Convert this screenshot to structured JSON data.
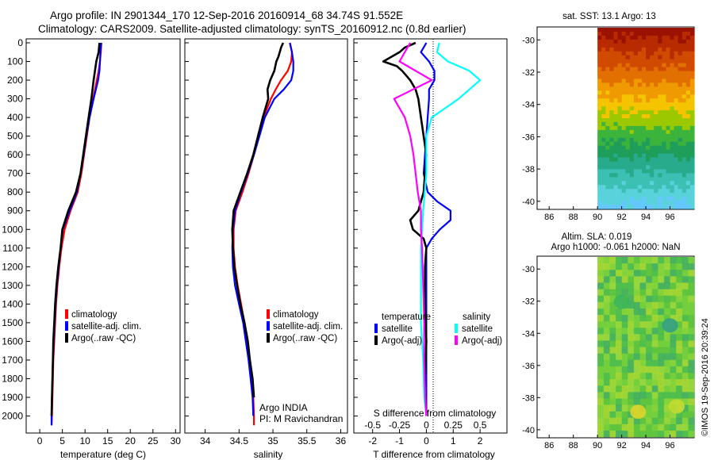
{
  "header": {
    "title_line1": "Argo profile: IN 2901344_170 12-Sep-2016 20160914_68 34.74S 91.552E",
    "title_line2": "Climatology: CARS2009. Satellite-adjusted climatology: synTS_20160912.nc (0.8d earlier)"
  },
  "colors": {
    "climatology": "#ff0000",
    "satellite": "#0000ff",
    "argo": "#000000",
    "sat_salinity": "#00ffff",
    "argo_salinity": "#ff00ff"
  },
  "chart_data": [
    {
      "type": "line",
      "title": "",
      "xlabel": "temperature (deg C)",
      "ylabel": "",
      "xlim": [
        -3,
        31
      ],
      "ylim": [
        2070,
        0
      ],
      "xticks": [
        "0",
        "5",
        "10",
        "15",
        "20",
        "25",
        "30"
      ],
      "yticks": [
        "0",
        "100",
        "200",
        "300",
        "400",
        "500",
        "600",
        "700",
        "800",
        "900",
        "1000",
        "1100",
        "1200",
        "1300",
        "1400",
        "1500",
        "1600",
        "1700",
        "1800",
        "1900",
        "2000"
      ],
      "legend": [
        "climatology",
        "satellite-adj. clim.",
        "Argo(..raw -QC)"
      ],
      "legend_position": "lower-center",
      "series": [
        {
          "name": "climatology",
          "color": "#ff0000",
          "depth": [
            0,
            50,
            100,
            150,
            200,
            300,
            400,
            500,
            600,
            700,
            800,
            900,
            1000,
            1100,
            1200,
            1300,
            1400,
            1500,
            1600,
            1700,
            1800,
            1900,
            2000,
            2050
          ],
          "values": [
            13.6,
            13.5,
            13.3,
            13.0,
            12.6,
            11.8,
            11.0,
            10.4,
            9.8,
            9.2,
            8.4,
            6.8,
            5.5,
            4.8,
            4.3,
            3.9,
            3.6,
            3.4,
            3.2,
            3.0,
            2.9,
            2.8,
            2.7,
            2.6
          ]
        },
        {
          "name": "satellite-adj. clim.",
          "color": "#0000ff",
          "depth": [
            0,
            50,
            100,
            150,
            200,
            300,
            400,
            500,
            600,
            700,
            800,
            900,
            1000,
            1100,
            1200,
            1300,
            1400,
            1500,
            1600,
            1700,
            1800,
            1900,
            2000,
            2050
          ],
          "values": [
            13.6,
            13.4,
            13.3,
            13.2,
            12.9,
            11.9,
            11.0,
            10.3,
            9.7,
            9.0,
            8.2,
            6.6,
            5.1,
            4.6,
            4.2,
            3.8,
            3.5,
            3.3,
            3.1,
            2.9,
            2.8,
            2.7,
            2.6,
            2.6
          ]
        },
        {
          "name": "Argo(..raw -QC)",
          "color": "#000000",
          "depth": [
            0,
            50,
            100,
            150,
            200,
            300,
            400,
            500,
            600,
            700,
            800,
            900,
            1000,
            1100,
            1200,
            1300,
            1400,
            1500,
            1600,
            1700,
            1800,
            1900,
            2000
          ],
          "values": [
            13.2,
            13.0,
            12.5,
            12.2,
            11.9,
            11.4,
            10.8,
            10.2,
            9.6,
            9.0,
            8.0,
            6.3,
            5.0,
            4.6,
            4.1,
            3.7,
            3.4,
            3.2,
            3.0,
            2.9,
            2.8,
            2.7,
            2.6
          ]
        }
      ]
    },
    {
      "type": "line",
      "title": "",
      "xlabel": "salinity",
      "ylabel": "",
      "xlim": [
        33.7,
        36.1
      ],
      "ylim": [
        2070,
        0
      ],
      "xticks": [
        "34",
        "34.5",
        "35",
        "35.5",
        "36"
      ],
      "legend": [
        "climatology",
        "satellite-adj. clim.",
        "Argo(..raw -QC)"
      ],
      "legend_position": "lower-right",
      "annotation_line1": "Argo INDIA",
      "annotation_line2": "PI: M Ravichandran",
      "series": [
        {
          "name": "climatology",
          "color": "#ff0000",
          "depth": [
            0,
            50,
            100,
            150,
            200,
            250,
            300,
            400,
            500,
            600,
            700,
            800,
            900,
            1000,
            1100,
            1200,
            1300,
            1400,
            1500,
            1600,
            1700,
            1800,
            1900,
            2000,
            2050
          ],
          "values": [
            35.25,
            35.28,
            35.27,
            35.22,
            35.12,
            35.04,
            34.97,
            34.86,
            34.79,
            34.72,
            34.64,
            34.55,
            34.45,
            34.42,
            34.42,
            34.44,
            34.48,
            34.53,
            34.58,
            34.62,
            34.65,
            34.68,
            34.71,
            34.72,
            34.72
          ]
        },
        {
          "name": "satellite-adj. clim.",
          "color": "#0000ff",
          "depth": [
            0,
            50,
            100,
            150,
            200,
            250,
            300,
            400,
            500,
            600,
            700,
            800,
            900,
            1000,
            1100,
            1200,
            1300,
            1400,
            1500,
            1600,
            1700,
            1800,
            1900,
            2000
          ],
          "values": [
            35.25,
            35.28,
            35.3,
            35.3,
            35.27,
            35.16,
            35.02,
            34.88,
            34.8,
            34.72,
            34.63,
            34.53,
            34.44,
            34.41,
            34.4,
            34.41,
            34.44,
            34.5,
            34.56,
            34.6,
            34.64,
            34.67,
            34.7,
            34.71
          ]
        },
        {
          "name": "Argo(..raw -QC)",
          "color": "#000000",
          "depth": [
            0,
            25,
            50,
            75,
            100,
            150,
            200,
            250,
            300,
            400,
            500,
            600,
            700,
            800,
            900,
            1000,
            1100,
            1200,
            1300,
            1400,
            1500,
            1600,
            1700,
            1800,
            1900
          ],
          "values": [
            35.15,
            35.12,
            35.1,
            35.08,
            35.05,
            35.02,
            34.96,
            34.92,
            34.93,
            34.85,
            34.78,
            34.71,
            34.62,
            34.52,
            34.42,
            34.4,
            34.41,
            34.43,
            34.47,
            34.52,
            34.58,
            34.63,
            34.66,
            34.7,
            34.72
          ]
        }
      ]
    },
    {
      "type": "line",
      "title": "",
      "xlabel": "T difference from climatology",
      "secondary_xlabel": "S difference from climatology",
      "ylabel": "",
      "xlim": [
        -2.7,
        3.0
      ],
      "ylim": [
        2070,
        0
      ],
      "xticks": [
        "-2",
        "-1",
        "0",
        "1",
        "2"
      ],
      "secondary_xticks": [
        "-0.5",
        "-0.25",
        "0",
        "0.25",
        "0.5"
      ],
      "secondary_xlim": [
        -0.675,
        0.75
      ],
      "legend_temperature_header": "temperature",
      "legend_salinity_header": "salinity",
      "legend": [
        "satellite",
        "Argo(-adj)",
        "satellite",
        "Argo(-adj)"
      ],
      "legend_position": "lower-center",
      "series": [
        {
          "name": "temperature satellite",
          "color": "#0000ff",
          "depth": [
            0,
            50,
            100,
            150,
            200,
            250,
            300,
            400,
            500,
            600,
            700,
            800,
            850,
            900,
            950,
            1000,
            1050,
            1100,
            1200,
            1300,
            1500,
            1700,
            1900,
            2000
          ],
          "values": [
            0.0,
            -0.2,
            0.1,
            0.3,
            0.3,
            0.1,
            0.1,
            0.05,
            0.0,
            -0.05,
            -0.1,
            0.05,
            0.4,
            0.9,
            0.9,
            0.5,
            0.2,
            0.0,
            0.0,
            0.0,
            0.0,
            0.0,
            0.0,
            0.0
          ]
        },
        {
          "name": "temperature Argo(-adj)",
          "color": "#000000",
          "depth": [
            0,
            25,
            50,
            75,
            100,
            125,
            150,
            200,
            250,
            300,
            400,
            500,
            600,
            700,
            800,
            900,
            950,
            1000,
            1050,
            1100,
            1200,
            1400,
            1600,
            1800,
            2000
          ],
          "values": [
            -0.4,
            -0.8,
            -1.0,
            -1.3,
            -1.6,
            -1.1,
            -0.9,
            -0.6,
            -0.4,
            -0.3,
            -0.2,
            -0.1,
            0.0,
            -0.05,
            -0.1,
            -0.3,
            -0.6,
            -0.5,
            -0.1,
            0.0,
            -0.05,
            -0.05,
            0.0,
            -0.05,
            0.0
          ]
        },
        {
          "name": "salinity satellite",
          "color": "#00ffff",
          "depth": [
            0,
            50,
            100,
            150,
            200,
            300,
            400,
            500,
            700,
            900,
            1100,
            1300,
            1500,
            1700,
            1900,
            2000
          ],
          "values": [
            0.12,
            0.1,
            0.2,
            0.4,
            0.5,
            0.3,
            0.05,
            0.0,
            0.0,
            -0.03,
            -0.05,
            -0.05,
            -0.05,
            -0.03,
            -0.02,
            0.0
          ]
        },
        {
          "name": "salinity Argo(-adj)",
          "color": "#ff00ff",
          "depth": [
            0,
            50,
            100,
            150,
            200,
            300,
            400,
            500,
            600,
            700,
            800,
            900,
            1000,
            1100,
            1300,
            1500,
            1700,
            1900,
            2000
          ],
          "values": [
            -0.15,
            -0.2,
            -0.25,
            -0.1,
            0.05,
            -0.3,
            -0.2,
            -0.15,
            -0.12,
            -0.1,
            -0.08,
            -0.05,
            -0.05,
            -0.04,
            -0.03,
            -0.02,
            -0.02,
            -0.01,
            0.0
          ]
        }
      ]
    },
    {
      "type": "heatmap",
      "title": "sat. SST: 13.1  Argo: 13",
      "xticks": [
        "86",
        "88",
        "90",
        "92",
        "94",
        "96"
      ],
      "yticks": [
        "-30",
        "-32",
        "-34",
        "-36",
        "-38",
        "-40"
      ],
      "xlim": [
        85,
        98
      ],
      "ylim": [
        -40.5,
        -29.2
      ],
      "field_lon_range": [
        90,
        98
      ],
      "row_colors": [
        "#9b1200",
        "#b82a00",
        "#d04a00",
        "#e27000",
        "#ee9a00",
        "#f5c400",
        "#9cc800",
        "#3cb43c",
        "#1e9e5a",
        "#28aa8c",
        "#3cc0b4",
        "#5ad2dc",
        "#64c8ff"
      ]
    },
    {
      "type": "heatmap",
      "title_line1": "Altim. SLA: 0.019",
      "title_line2": "Argo h1000: -0.061  h2000: NaN",
      "xticks": [
        "86",
        "88",
        "90",
        "92",
        "94",
        "96"
      ],
      "yticks": [
        "-30",
        "-32",
        "-34",
        "-36",
        "-38",
        "-40"
      ],
      "xlim": [
        85,
        98
      ],
      "ylim": [
        -40.5,
        -29.2
      ],
      "field_lon_range": [
        90,
        98
      ],
      "base_color": "#6ccc3c"
    }
  ],
  "footer": {
    "credit": "©IMOS 19-Sep-2016 20:39:24"
  }
}
